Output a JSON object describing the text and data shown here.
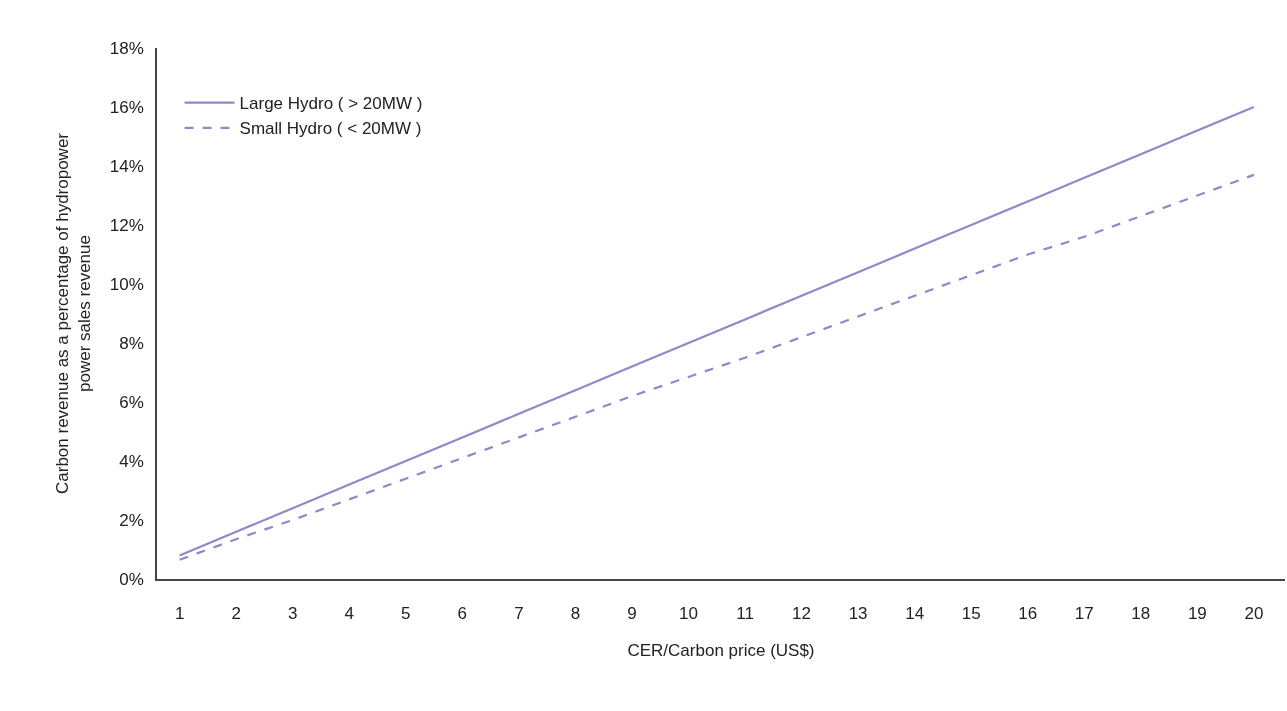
{
  "chart_data": {
    "type": "line",
    "xlabel": "CER/Carbon price (US$)",
    "ylabel": "Carbon revenue as a percentage of hydropower\npower sales revenue",
    "series": [
      {
        "name": "Large Hydro ( > 20MW )",
        "color": "#8b8bc8",
        "line_style": "solid",
        "values": [
          0.8,
          1.6,
          2.4,
          3.2,
          4.0,
          4.8,
          5.6,
          6.4,
          7.2,
          8.0,
          8.8,
          9.6,
          10.4,
          11.2,
          12.0,
          12.8,
          13.6,
          14.4,
          15.2,
          16.0
        ]
      },
      {
        "name": "Small Hydro ( < 20MW )",
        "color": "#8b8bc8",
        "line_style": "dashed",
        "values": [
          0.65,
          1.35,
          2.0,
          2.7,
          3.4,
          4.1,
          4.8,
          5.5,
          6.2,
          6.85,
          7.5,
          8.2,
          8.9,
          9.6,
          10.3,
          11.0,
          11.6,
          12.3,
          13.0,
          13.7
        ]
      }
    ],
    "x": [
      1,
      2,
      3,
      4,
      5,
      6,
      7,
      8,
      9,
      10,
      11,
      12,
      13,
      14,
      15,
      16,
      17,
      18,
      19,
      20
    ],
    "xlim": [
      0.6,
      20.55
    ],
    "xticks": [
      1,
      2,
      3,
      4,
      5,
      6,
      7,
      8,
      9,
      10,
      11,
      12,
      13,
      14,
      15,
      16,
      17,
      18,
      19,
      20
    ],
    "ylim": [
      0,
      18
    ],
    "yticks": [
      {
        "value": 0,
        "label": "0%"
      },
      {
        "value": 2,
        "label": "2%"
      },
      {
        "value": 4,
        "label": "4%"
      },
      {
        "value": 6,
        "label": "6%"
      },
      {
        "value": 8,
        "label": "8%"
      },
      {
        "value": 10,
        "label": "10%"
      },
      {
        "value": 12,
        "label": "12%"
      },
      {
        "value": 14,
        "label": "14%"
      },
      {
        "value": 16,
        "label": "16%"
      },
      {
        "value": 18,
        "label": "18%"
      }
    ],
    "legend": "top left",
    "marker": "none"
  }
}
